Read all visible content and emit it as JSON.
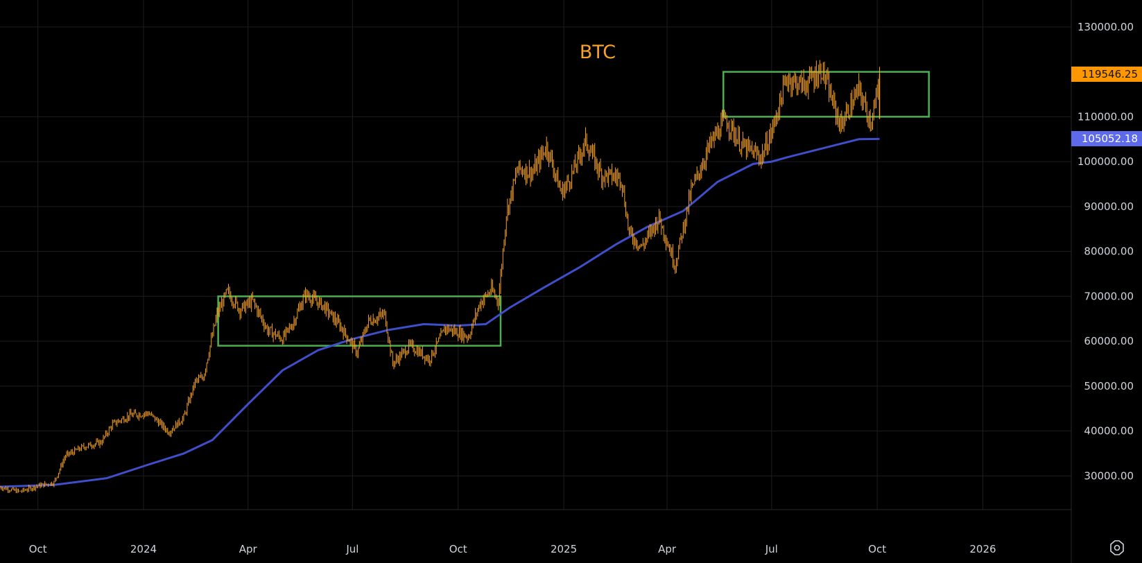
{
  "colors": {
    "background": "#000000",
    "grid": "#1e1e1e",
    "candle": "#f7a125",
    "moving_average": "#3f4fc9",
    "range_box": "#4caf50",
    "title": "#f7a125",
    "axis_text": "#d1d4dc",
    "last_price_bg": "#ff9800",
    "ma_price_bg": "#5d6bea"
  },
  "chart_data": {
    "type": "line",
    "title": "BTC",
    "y_scale": "linear",
    "ylim": [
      22500,
      136000
    ],
    "xlim": [
      "2023-08-29",
      "2026-03-19"
    ],
    "grid": true,
    "x_tick_labels": [
      {
        "date": "2023-10-01",
        "label": "Oct"
      },
      {
        "date": "2024-01-01",
        "label": "2024"
      },
      {
        "date": "2024-04-01",
        "label": "Apr"
      },
      {
        "date": "2024-07-01",
        "label": "Jul"
      },
      {
        "date": "2024-10-01",
        "label": "Oct"
      },
      {
        "date": "2025-01-01",
        "label": "2025"
      },
      {
        "date": "2025-04-01",
        "label": "Apr"
      },
      {
        "date": "2025-07-01",
        "label": "Jul"
      },
      {
        "date": "2025-10-01",
        "label": "Oct"
      },
      {
        "date": "2026-01-01",
        "label": "2026"
      }
    ],
    "y_tick_labels": [
      {
        "value": 30000,
        "label": "30000.00"
      },
      {
        "value": 40000,
        "label": "40000.00"
      },
      {
        "value": 50000,
        "label": "50000.00"
      },
      {
        "value": 60000,
        "label": "60000.00"
      },
      {
        "value": 70000,
        "label": "70000.00"
      },
      {
        "value": 80000,
        "label": "80000.00"
      },
      {
        "value": 90000,
        "label": "90000.00"
      },
      {
        "value": 100000,
        "label": "100000.00"
      },
      {
        "value": 110000,
        "label": "110000.00"
      },
      {
        "value": 130000,
        "label": "130000.00"
      }
    ],
    "series": [
      {
        "kind": "price",
        "x": [
          "2023-08-29",
          "2023-09-15",
          "2023-10-01",
          "2023-10-15",
          "2023-10-25",
          "2023-11-10",
          "2023-11-25",
          "2023-12-05",
          "2023-12-20",
          "2024-01-05",
          "2024-01-12",
          "2024-01-23",
          "2024-02-05",
          "2024-02-15",
          "2024-02-22",
          "2024-02-28",
          "2024-03-05",
          "2024-03-14",
          "2024-03-25",
          "2024-04-05",
          "2024-04-18",
          "2024-05-01",
          "2024-05-10",
          "2024-05-21",
          "2024-06-05",
          "2024-06-20",
          "2024-07-05",
          "2024-07-15",
          "2024-07-29",
          "2024-08-05",
          "2024-08-20",
          "2024-09-06",
          "2024-09-20",
          "2024-10-10",
          "2024-10-20",
          "2024-10-30",
          "2024-11-05",
          "2024-11-12",
          "2024-11-22",
          "2024-12-05",
          "2024-12-17",
          "2024-12-30",
          "2025-01-07",
          "2025-01-20",
          "2025-02-03",
          "2025-02-20",
          "2025-02-27",
          "2025-03-10",
          "2025-03-25",
          "2025-04-08",
          "2025-04-22",
          "2025-05-08",
          "2025-05-22",
          "2025-06-05",
          "2025-06-22",
          "2025-07-01",
          "2025-07-14",
          "2025-07-29",
          "2025-08-14",
          "2025-08-30",
          "2025-09-15",
          "2025-09-25",
          "2025-10-01",
          "2025-10-03"
        ],
        "y": [
          27500,
          26500,
          27800,
          28500,
          34500,
          36500,
          37500,
          41500,
          43500,
          44000,
          42500,
          39800,
          43000,
          51000,
          52000,
          59000,
          66000,
          71000,
          67000,
          69000,
          62500,
          60500,
          64000,
          70500,
          68000,
          63500,
          57500,
          64500,
          66000,
          55000,
          59000,
          56000,
          63000,
          61000,
          68500,
          71500,
          69000,
          88500,
          98500,
          97500,
          103500,
          93000,
          96500,
          104500,
          97000,
          96500,
          84000,
          81000,
          87500,
          77000,
          93500,
          103500,
          109500,
          103500,
          101000,
          106500,
          118500,
          117000,
          120500,
          108000,
          116000,
          109000,
          114500,
          119546.25
        ]
      },
      {
        "kind": "moving_average",
        "x": [
          "2023-08-29",
          "2023-10-15",
          "2023-11-30",
          "2024-01-05",
          "2024-02-05",
          "2024-03-01",
          "2024-04-01",
          "2024-05-01",
          "2024-06-01",
          "2024-07-01",
          "2024-08-01",
          "2024-09-01",
          "2024-10-01",
          "2024-10-25",
          "2024-11-15",
          "2024-12-15",
          "2025-01-15",
          "2025-02-15",
          "2025-03-15",
          "2025-04-15",
          "2025-05-15",
          "2025-06-15",
          "2025-07-01",
          "2025-07-15",
          "2025-08-15",
          "2025-09-15",
          "2025-10-03"
        ],
        "y": [
          27600,
          28000,
          29500,
          32500,
          35000,
          38000,
          46000,
          53500,
          58000,
          60500,
          62500,
          63800,
          63500,
          63800,
          67500,
          72000,
          76500,
          81500,
          85500,
          89000,
          95500,
          99500,
          100000,
          101000,
          103000,
          105000,
          105052.18
        ]
      }
    ],
    "annotations": [
      {
        "type": "rectangle",
        "x0": "2024-03-06",
        "x1": "2024-11-07",
        "y0": 59000,
        "y1": 70000
      },
      {
        "type": "rectangle",
        "x0": "2025-05-20",
        "x1": "2025-11-15",
        "y0": 110000,
        "y1": 120000
      }
    ],
    "last_price_label": "119546.25",
    "moving_average_label": "105052.18"
  }
}
